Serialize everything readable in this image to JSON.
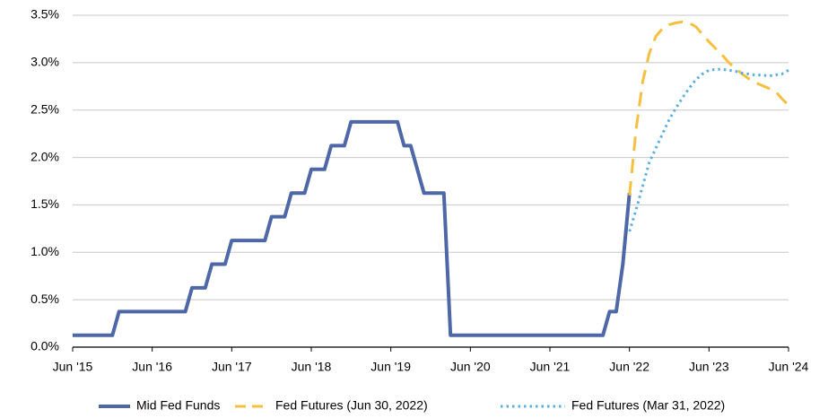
{
  "chart_data": {
    "type": "line",
    "xlim": [
      "2015-06",
      "2024-06"
    ],
    "xticks": [
      {
        "value": "2015-06",
        "label": "Jun '15"
      },
      {
        "value": "2016-06",
        "label": "Jun '16"
      },
      {
        "value": "2017-06",
        "label": "Jun '17"
      },
      {
        "value": "2018-06",
        "label": "Jun '18"
      },
      {
        "value": "2019-06",
        "label": "Jun '19"
      },
      {
        "value": "2020-06",
        "label": "Jun '20"
      },
      {
        "value": "2021-06",
        "label": "Jun '21"
      },
      {
        "value": "2022-06",
        "label": "Jun '22"
      },
      {
        "value": "2023-06",
        "label": "Jun '23"
      },
      {
        "value": "2024-06",
        "label": "Jun '24"
      }
    ],
    "ylim": [
      0,
      3.5
    ],
    "yticks": [
      {
        "value": 0,
        "label": "0.0%"
      },
      {
        "value": 0.5,
        "label": "0.5%"
      },
      {
        "value": 1,
        "label": "1.0%"
      },
      {
        "value": 1.5,
        "label": "1.5%"
      },
      {
        "value": 2,
        "label": "2.0%"
      },
      {
        "value": 2.5,
        "label": "2.5%"
      },
      {
        "value": 3,
        "label": "3.0%"
      },
      {
        "value": 3.5,
        "label": "3.5%"
      }
    ],
    "grid": true,
    "legend": "bottom",
    "series": [
      {
        "name": "Mid Fed Funds",
        "color": "#4e67a6",
        "style": "solid",
        "x": [
          "2015-06",
          "2015-12",
          "2016-01",
          "2016-11",
          "2016-12",
          "2017-02",
          "2017-03",
          "2017-05",
          "2017-06",
          "2017-11",
          "2017-12",
          "2018-02",
          "2018-03",
          "2018-05",
          "2018-06",
          "2018-08",
          "2018-09",
          "2018-11",
          "2018-12",
          "2019-07",
          "2019-08",
          "2019-09",
          "2019-11",
          "2020-02",
          "2020-03",
          "2022-02",
          "2022-03",
          "2022-04",
          "2022-05",
          "2022-06"
        ],
        "values": [
          0.125,
          0.125,
          0.375,
          0.375,
          0.625,
          0.625,
          0.875,
          0.875,
          1.125,
          1.125,
          1.375,
          1.375,
          1.625,
          1.625,
          1.875,
          1.875,
          2.125,
          2.125,
          2.375,
          2.375,
          2.125,
          2.125,
          1.625,
          1.625,
          0.125,
          0.125,
          0.375,
          0.375,
          0.875,
          1.625
        ]
      },
      {
        "name": "Fed Futures (Jun 30, 2022)",
        "color": "#f5c040",
        "style": "dashed",
        "x": [
          "2022-06",
          "2022-07",
          "2022-08",
          "2022-09",
          "2022-10",
          "2022-11",
          "2022-12",
          "2023-01",
          "2023-02",
          "2023-03",
          "2023-04",
          "2023-05",
          "2023-06",
          "2023-07",
          "2023-08",
          "2023-09",
          "2023-10",
          "2023-11",
          "2023-12",
          "2024-01",
          "2024-02",
          "2024-03",
          "2024-04",
          "2024-05",
          "2024-06"
        ],
        "values": [
          1.6,
          2.3,
          2.8,
          3.1,
          3.28,
          3.36,
          3.4,
          3.42,
          3.43,
          3.42,
          3.38,
          3.3,
          3.22,
          3.15,
          3.08,
          3.0,
          2.94,
          2.88,
          2.83,
          2.79,
          2.76,
          2.73,
          2.7,
          2.62,
          2.55
        ]
      },
      {
        "name": "Fed Futures (Mar 31, 2022)",
        "color": "#5aaee0",
        "style": "dotted",
        "x": [
          "2022-06",
          "2022-07",
          "2022-08",
          "2022-09",
          "2022-10",
          "2022-11",
          "2022-12",
          "2023-01",
          "2023-02",
          "2023-03",
          "2023-04",
          "2023-05",
          "2023-06",
          "2023-07",
          "2023-08",
          "2023-09",
          "2023-10",
          "2023-11",
          "2023-12",
          "2024-01",
          "2024-02",
          "2024-03",
          "2024-04",
          "2024-05",
          "2024-06"
        ],
        "values": [
          1.22,
          1.45,
          1.7,
          1.95,
          2.1,
          2.25,
          2.4,
          2.52,
          2.63,
          2.73,
          2.82,
          2.88,
          2.92,
          2.93,
          2.93,
          2.92,
          2.91,
          2.89,
          2.88,
          2.87,
          2.87,
          2.86,
          2.87,
          2.88,
          2.92
        ]
      }
    ]
  }
}
